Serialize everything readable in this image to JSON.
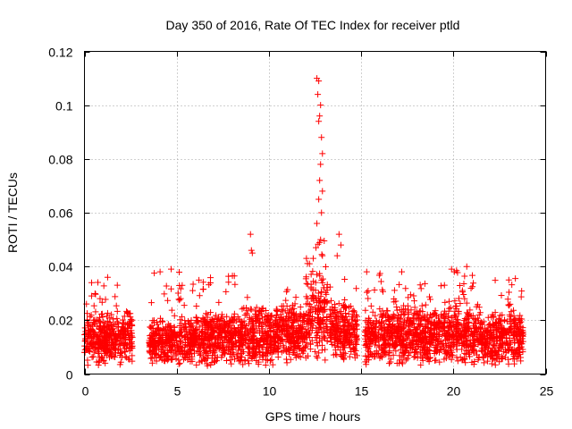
{
  "chart_data": {
    "type": "scatter",
    "title": "Day 350 of 2016, Rate Of TEC Index for receiver ptld",
    "xlabel": "GPS time / hours",
    "ylabel": "ROTI / TECUs",
    "xlim": [
      0,
      25
    ],
    "ylim": [
      0,
      0.12
    ],
    "xticks": [
      "0",
      "5",
      "10",
      "15",
      "20",
      "25"
    ],
    "yticks": [
      "0",
      "0.02",
      "0.04",
      "0.06",
      "0.08",
      "0.1",
      "0.12"
    ],
    "grid": true,
    "marker": "plus",
    "color": "#ff0000",
    "series": [
      {
        "name": "ROTI",
        "envelope_note": "summary of dense scatter: per-segment typical min/max/upper envelope",
        "segments": [
          {
            "x_start": 0.0,
            "x_end": 2.6,
            "min": 0.003,
            "max": 0.024,
            "upper": 0.036
          },
          {
            "x_start": 3.5,
            "x_end": 6.0,
            "min": 0.003,
            "max": 0.022,
            "upper": 0.039
          },
          {
            "x_start": 6.0,
            "x_end": 8.5,
            "min": 0.003,
            "max": 0.024,
            "upper": 0.037
          },
          {
            "x_start": 8.5,
            "x_end": 10.5,
            "min": 0.003,
            "max": 0.026,
            "upper": 0.03
          },
          {
            "x_start": 10.5,
            "x_end": 12.0,
            "min": 0.003,
            "max": 0.028,
            "upper": 0.036
          },
          {
            "x_start": 12.0,
            "x_end": 13.2,
            "min": 0.005,
            "max": 0.04,
            "upper": 0.05
          },
          {
            "x_start": 13.3,
            "x_end": 14.8,
            "min": 0.005,
            "max": 0.028,
            "upper": 0.038
          },
          {
            "x_start": 15.2,
            "x_end": 17.5,
            "min": 0.003,
            "max": 0.025,
            "upper": 0.038
          },
          {
            "x_start": 17.5,
            "x_end": 20.0,
            "min": 0.003,
            "max": 0.026,
            "upper": 0.035
          },
          {
            "x_start": 20.0,
            "x_end": 21.5,
            "min": 0.003,
            "max": 0.028,
            "upper": 0.04
          },
          {
            "x_start": 21.5,
            "x_end": 23.8,
            "min": 0.003,
            "max": 0.024,
            "upper": 0.036
          }
        ],
        "peaks": [
          {
            "x": 12.6,
            "y": 0.11
          },
          {
            "x": 12.7,
            "y": 0.109
          },
          {
            "x": 12.65,
            "y": 0.104
          },
          {
            "x": 12.8,
            "y": 0.1
          },
          {
            "x": 12.75,
            "y": 0.096
          },
          {
            "x": 12.7,
            "y": 0.094
          },
          {
            "x": 12.85,
            "y": 0.088
          },
          {
            "x": 12.9,
            "y": 0.082
          },
          {
            "x": 12.8,
            "y": 0.078
          },
          {
            "x": 12.75,
            "y": 0.072
          },
          {
            "x": 12.9,
            "y": 0.068
          },
          {
            "x": 12.7,
            "y": 0.065
          },
          {
            "x": 12.85,
            "y": 0.06
          },
          {
            "x": 12.6,
            "y": 0.056
          },
          {
            "x": 12.8,
            "y": 0.05
          },
          {
            "x": 12.55,
            "y": 0.047
          },
          {
            "x": 12.9,
            "y": 0.044
          },
          {
            "x": 9.0,
            "y": 0.052
          },
          {
            "x": 9.05,
            "y": 0.046
          },
          {
            "x": 9.1,
            "y": 0.045
          },
          {
            "x": 13.8,
            "y": 0.052
          },
          {
            "x": 13.9,
            "y": 0.048
          },
          {
            "x": 13.7,
            "y": 0.044
          },
          {
            "x": 12.4,
            "y": 0.043
          },
          {
            "x": 12.2,
            "y": 0.041
          },
          {
            "x": 19.9,
            "y": 0.039
          },
          {
            "x": 20.05,
            "y": 0.038
          },
          {
            "x": 4.1,
            "y": 0.038
          },
          {
            "x": 4.7,
            "y": 0.039
          },
          {
            "x": 15.3,
            "y": 0.038
          },
          {
            "x": 17.2,
            "y": 0.038
          }
        ]
      }
    ]
  }
}
